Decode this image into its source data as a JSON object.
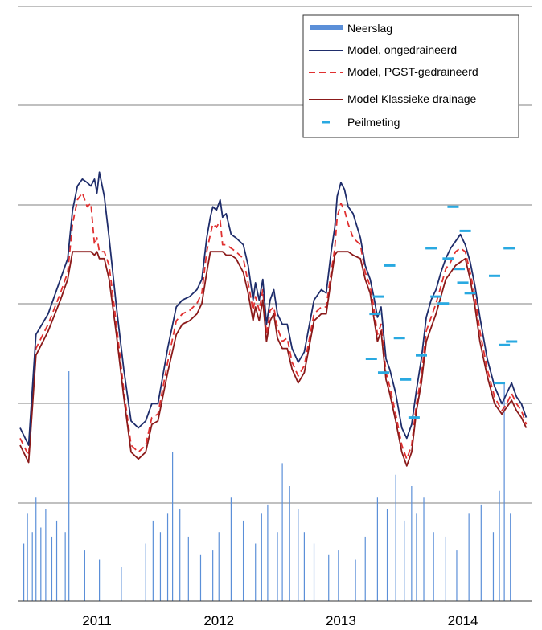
{
  "chart_data": {
    "type": "line",
    "title": "",
    "xlabel": "",
    "ylabel": "",
    "x_tick_labels": [
      "2011",
      "2012",
      "2013",
      "2014"
    ],
    "x_tick_years": [
      2011,
      2012,
      2013,
      2014
    ],
    "xlim": [
      2010.45,
      2014.67
    ],
    "level_ylim": [
      0,
      100
    ],
    "rain_ylim": [
      0,
      100
    ],
    "grid": "horizontal",
    "legend_position": "top-right",
    "legend": [
      {
        "key": "neerslag",
        "label": "Neerslag"
      },
      {
        "key": "ongedraineerd",
        "label": "Model, ongedraineerd"
      },
      {
        "key": "pgst",
        "label": "Model, PGST-gedraineerd"
      },
      {
        "key": "klassiek",
        "label": "Model Klassieke drainage"
      },
      {
        "key": "peil",
        "label": "Peilmeting"
      }
    ],
    "colors": {
      "neerslag": "#5b8fd8",
      "ongedraineerd": "#1f2d6b",
      "pgst": "#e03030",
      "klassiek": "#8b1a1a",
      "peil": "#29a9e1",
      "grid": "#808080"
    },
    "series": [
      {
        "key": "ongedraineerd",
        "x": [
          2010.47,
          2010.54,
          2010.6,
          2010.7,
          2010.8,
          2010.86,
          2010.9,
          2010.94,
          2010.98,
          2011.02,
          2011.05,
          2011.08,
          2011.1,
          2011.12,
          2011.16,
          2011.2,
          2011.26,
          2011.32,
          2011.38,
          2011.44,
          2011.5,
          2011.55,
          2011.6,
          2011.68,
          2011.75,
          2011.8,
          2011.86,
          2011.92,
          2011.96,
          2012.0,
          2012.03,
          2012.05,
          2012.08,
          2012.11,
          2012.13,
          2012.16,
          2012.2,
          2012.24,
          2012.3,
          2012.34,
          2012.38,
          2012.4,
          2012.43,
          2012.46,
          2012.49,
          2012.52,
          2012.55,
          2012.58,
          2012.62,
          2012.66,
          2012.7,
          2012.75,
          2012.8,
          2012.88,
          2012.94,
          2012.98,
          2013.02,
          2013.05,
          2013.07,
          2013.1,
          2013.13,
          2013.16,
          2013.2,
          2013.26,
          2013.3,
          2013.34,
          2013.37,
          2013.4,
          2013.43,
          2013.47,
          2013.5,
          2013.55,
          2013.6,
          2013.64,
          2013.68,
          2013.72,
          2013.76,
          2013.8,
          2013.84,
          2013.88,
          2013.92,
          2013.96,
          2014.0,
          2014.04,
          2014.08,
          2014.12,
          2014.16,
          2014.2,
          2014.24,
          2014.3,
          2014.36,
          2014.42,
          2014.46,
          2014.5,
          2014.54,
          2014.58,
          2014.62
        ],
        "y": [
          25,
          20,
          52,
          58,
          68,
          74,
          88,
          95,
          97,
          96,
          95,
          97,
          93,
          99,
          92,
          80,
          60,
          42,
          27,
          25,
          27,
          32,
          32,
          48,
          60,
          62,
          63,
          65,
          68,
          80,
          86,
          89,
          88,
          91,
          86,
          87,
          81,
          80,
          78,
          72,
          62,
          67,
          62,
          68,
          55,
          62,
          65,
          58,
          55,
          55,
          48,
          44,
          47,
          62,
          65,
          64,
          76,
          83,
          92,
          96,
          94,
          89,
          87,
          80,
          72,
          68,
          63,
          57,
          60,
          45,
          42,
          35,
          25,
          22,
          26,
          36,
          45,
          57,
          62,
          65,
          70,
          74,
          77,
          79,
          81,
          78,
          73,
          66,
          57,
          45,
          37,
          32,
          35,
          38,
          34,
          32,
          28
        ]
      },
      {
        "key": "pgst",
        "x": [
          2010.47,
          2010.54,
          2010.6,
          2010.7,
          2010.8,
          2010.86,
          2010.9,
          2010.94,
          2010.98,
          2011.02,
          2011.05,
          2011.08,
          2011.1,
          2011.12,
          2011.16,
          2011.2,
          2011.26,
          2011.32,
          2011.38,
          2011.44,
          2011.5,
          2011.55,
          2011.6,
          2011.68,
          2011.75,
          2011.8,
          2011.86,
          2011.92,
          2011.96,
          2012.0,
          2012.03,
          2012.05,
          2012.08,
          2012.11,
          2012.13,
          2012.16,
          2012.2,
          2012.24,
          2012.3,
          2012.34,
          2012.38,
          2012.4,
          2012.43,
          2012.46,
          2012.49,
          2012.52,
          2012.55,
          2012.58,
          2012.62,
          2012.66,
          2012.7,
          2012.75,
          2012.8,
          2012.88,
          2012.94,
          2012.98,
          2013.02,
          2013.05,
          2013.07,
          2013.1,
          2013.13,
          2013.16,
          2013.2,
          2013.26,
          2013.3,
          2013.34,
          2013.37,
          2013.4,
          2013.43,
          2013.47,
          2013.5,
          2013.55,
          2013.6,
          2013.64,
          2013.68,
          2013.72,
          2013.76,
          2013.8,
          2013.84,
          2013.88,
          2013.92,
          2013.96,
          2014.0,
          2014.04,
          2014.08,
          2014.12,
          2014.16,
          2014.2,
          2014.24,
          2014.3,
          2014.36,
          2014.42,
          2014.46,
          2014.5,
          2014.54,
          2014.58,
          2014.62
        ],
        "y": [
          22,
          17,
          48,
          55,
          64,
          70,
          84,
          91,
          93,
          89,
          90,
          78,
          80,
          76,
          76,
          72,
          55,
          36,
          20,
          18,
          20,
          28,
          29,
          44,
          56,
          58,
          59,
          61,
          64,
          76,
          81,
          84,
          83,
          85,
          78,
          78,
          77,
          76,
          74,
          67,
          59,
          63,
          59,
          65,
          52,
          59,
          60,
          54,
          50,
          51,
          44,
          40,
          43,
          58,
          60,
          60,
          70,
          77,
          86,
          90,
          88,
          84,
          80,
          78,
          70,
          66,
          60,
          52,
          55,
          41,
          37,
          29,
          20,
          16,
          20,
          32,
          40,
          53,
          57,
          61,
          66,
          71,
          73,
          76,
          77,
          76,
          70,
          63,
          53,
          42,
          34,
          30,
          32,
          35,
          32,
          30,
          26
        ]
      },
      {
        "key": "klassiek",
        "x": [
          2010.47,
          2010.54,
          2010.6,
          2010.7,
          2010.8,
          2010.86,
          2010.9,
          2010.94,
          2010.98,
          2011.02,
          2011.05,
          2011.08,
          2011.1,
          2011.12,
          2011.16,
          2011.2,
          2011.26,
          2011.32,
          2011.38,
          2011.44,
          2011.5,
          2011.55,
          2011.6,
          2011.68,
          2011.75,
          2011.8,
          2011.86,
          2011.92,
          2011.96,
          2012.0,
          2012.03,
          2012.05,
          2012.08,
          2012.11,
          2012.13,
          2012.16,
          2012.2,
          2012.24,
          2012.3,
          2012.34,
          2012.38,
          2012.4,
          2012.43,
          2012.46,
          2012.49,
          2012.52,
          2012.55,
          2012.58,
          2012.62,
          2012.66,
          2012.7,
          2012.75,
          2012.8,
          2012.88,
          2012.94,
          2012.98,
          2013.02,
          2013.05,
          2013.07,
          2013.1,
          2013.13,
          2013.16,
          2013.2,
          2013.26,
          2013.3,
          2013.34,
          2013.37,
          2013.4,
          2013.43,
          2013.47,
          2013.5,
          2013.55,
          2013.6,
          2013.64,
          2013.68,
          2013.72,
          2013.76,
          2013.8,
          2013.84,
          2013.88,
          2013.92,
          2013.96,
          2014.0,
          2014.04,
          2014.08,
          2014.12,
          2014.16,
          2014.2,
          2014.24,
          2014.3,
          2014.36,
          2014.42,
          2014.46,
          2014.5,
          2014.54,
          2014.58,
          2014.62
        ],
        "y": [
          20,
          15,
          46,
          53,
          62,
          68,
          76,
          76,
          76,
          76,
          76,
          75,
          76,
          74,
          74,
          68,
          52,
          34,
          18,
          16,
          18,
          26,
          27,
          41,
          52,
          55,
          56,
          58,
          61,
          70,
          76,
          76,
          76,
          76,
          76,
          75,
          75,
          74,
          70,
          64,
          56,
          60,
          56,
          62,
          50,
          56,
          58,
          51,
          48,
          48,
          42,
          38,
          41,
          56,
          58,
          58,
          68,
          75,
          76,
          76,
          76,
          76,
          75,
          74,
          68,
          64,
          57,
          50,
          53,
          39,
          35,
          27,
          18,
          14,
          18,
          30,
          38,
          50,
          54,
          58,
          63,
          68,
          70,
          72,
          73,
          74,
          68,
          60,
          50,
          40,
          32,
          29,
          31,
          33,
          30,
          28,
          25
        ]
      }
    ],
    "measurements": {
      "key": "peil",
      "x": [
        2013.35,
        2013.38,
        2013.41,
        2013.45,
        2013.5,
        2013.58,
        2013.63,
        2013.7,
        2013.76,
        2013.84,
        2013.88,
        2013.94,
        2013.98,
        2014.02,
        2014.07,
        2014.1,
        2014.12,
        2014.16,
        2014.36,
        2014.4,
        2014.44,
        2014.48,
        2014.5
      ],
      "y": [
        45,
        58,
        63,
        41,
        72,
        51,
        39,
        28,
        46,
        77,
        63,
        61,
        74,
        89,
        71,
        67,
        82,
        64,
        69,
        38,
        49,
        77,
        50
      ]
    },
    "rain": {
      "key": "neerslag",
      "x": [
        2010.5,
        2010.53,
        2010.57,
        2010.6,
        2010.64,
        2010.68,
        2010.73,
        2010.77,
        2010.84,
        2010.87,
        2011.0,
        2011.12,
        2011.3,
        2011.5,
        2011.56,
        2011.62,
        2011.68,
        2011.72,
        2011.78,
        2011.85,
        2011.95,
        2012.05,
        2012.1,
        2012.2,
        2012.3,
        2012.4,
        2012.45,
        2012.5,
        2012.58,
        2012.62,
        2012.68,
        2012.75,
        2012.8,
        2012.88,
        2013.0,
        2013.08,
        2013.22,
        2013.3,
        2013.4,
        2013.48,
        2013.55,
        2013.62,
        2013.68,
        2013.72,
        2013.78,
        2013.86,
        2013.96,
        2014.05,
        2014.15,
        2014.25,
        2014.35,
        2014.4,
        2014.44,
        2014.49
      ],
      "y": [
        25,
        38,
        30,
        45,
        32,
        40,
        28,
        35,
        30,
        100,
        22,
        18,
        15,
        25,
        35,
        30,
        38,
        65,
        40,
        28,
        20,
        22,
        30,
        45,
        35,
        25,
        38,
        42,
        30,
        60,
        50,
        40,
        30,
        25,
        20,
        22,
        18,
        28,
        45,
        40,
        55,
        35,
        50,
        38,
        45,
        30,
        28,
        22,
        38,
        42,
        30,
        48,
        95,
        38
      ]
    }
  }
}
